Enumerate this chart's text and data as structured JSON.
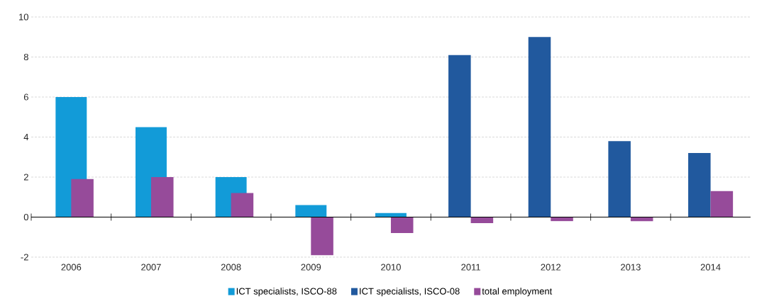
{
  "chart_data": {
    "type": "bar",
    "categories": [
      "2006",
      "2007",
      "2008",
      "2009",
      "2010",
      "2011",
      "2012",
      "2013",
      "2014"
    ],
    "series": [
      {
        "name": "ICT specialists, ISCO-88",
        "color": "#129bd8",
        "values": [
          6.0,
          4.5,
          2.0,
          0.6,
          0.2,
          null,
          null,
          null,
          null
        ]
      },
      {
        "name": "ICT specialists, ISCO-08",
        "color": "#21599e",
        "values": [
          null,
          null,
          null,
          null,
          null,
          8.1,
          9.0,
          3.8,
          3.2
        ]
      },
      {
        "name": "total employment",
        "color": "#964b9a",
        "values": [
          1.9,
          2.0,
          1.2,
          -1.9,
          -0.8,
          -0.3,
          -0.2,
          -0.2,
          1.3
        ]
      }
    ],
    "ylim": [
      -2,
      10
    ],
    "yticks": [
      -2,
      0,
      2,
      4,
      6,
      8,
      10
    ],
    "grid": "y",
    "legend": "bottom"
  }
}
